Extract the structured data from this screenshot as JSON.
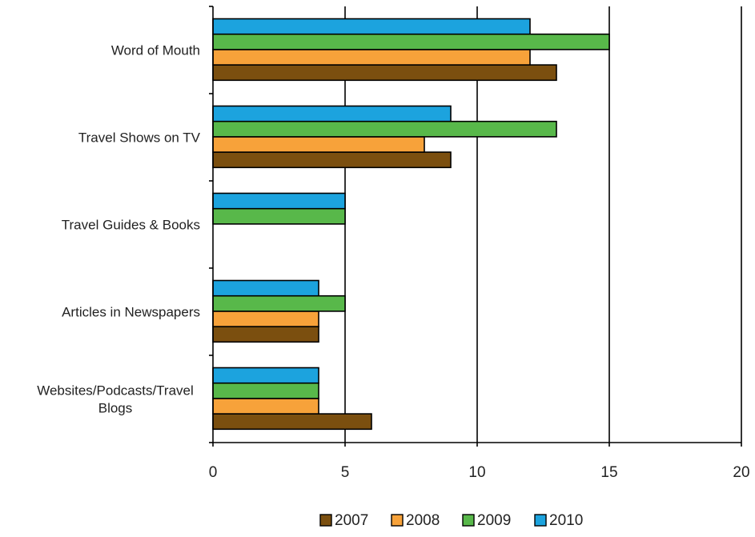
{
  "chart_data": {
    "type": "bar",
    "orientation": "horizontal",
    "categories": [
      "Websites/Podcasts/Travel Blogs",
      "Articles in Newspapers",
      "Travel Guides & Books",
      "Travel Shows on TV",
      "Word of Mouth"
    ],
    "category_label_lines": [
      [
        "Websites/Podcasts/Travel",
        "Blogs"
      ],
      [
        "Articles in Newspapers"
      ],
      [
        "Travel Guides & Books"
      ],
      [
        "Travel Shows on TV"
      ],
      [
        "Word of Mouth"
      ]
    ],
    "series": [
      {
        "name": "2007",
        "color": "#7b4f0f",
        "values": [
          6,
          4,
          0,
          9,
          13
        ]
      },
      {
        "name": "2008",
        "color": "#f7a23a",
        "values": [
          4,
          4,
          0,
          8,
          12
        ]
      },
      {
        "name": "2009",
        "color": "#58b84a",
        "values": [
          4,
          5,
          5,
          13,
          15
        ]
      },
      {
        "name": "2010",
        "color": "#1ca3de",
        "values": [
          4,
          4,
          5,
          9,
          12
        ]
      }
    ],
    "xlim": [
      0,
      20
    ],
    "xticks": [
      0,
      5,
      10,
      15,
      20
    ],
    "xtick_labels": [
      "0",
      "5",
      "10",
      "15",
      "20"
    ],
    "grid": "vertical",
    "legend_position": "bottom-center",
    "title": "",
    "xlabel": "",
    "ylabel": ""
  }
}
